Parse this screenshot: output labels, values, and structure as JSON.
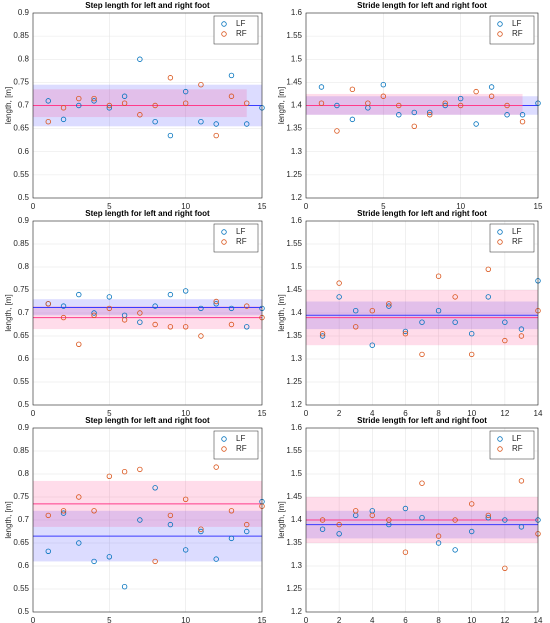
{
  "chart_data": [
    {
      "type": "scatter",
      "title": "Step length for left and right foot",
      "ylabel": "length, [m]",
      "xlim": [
        0,
        15
      ],
      "xticks": [
        0,
        5,
        10,
        15
      ],
      "ylim": [
        0.5,
        0.9
      ],
      "yticks": [
        0.5,
        0.55,
        0.6,
        0.65,
        0.7,
        0.75,
        0.8,
        0.85,
        0.9
      ],
      "grid": true,
      "legend": "upper right",
      "series": [
        {
          "name": "LF",
          "color": "#0072bd",
          "band_color": "#3b3bff",
          "x": [
            1,
            2,
            3,
            4,
            5,
            6,
            7,
            8,
            9,
            10,
            11,
            12,
            13,
            14,
            15
          ],
          "values": [
            0.71,
            0.67,
            0.7,
            0.71,
            0.695,
            0.72,
            0.8,
            0.665,
            0.635,
            0.73,
            0.665,
            0.66,
            0.765,
            0.66,
            0.695
          ],
          "mean": 0.7,
          "band": [
            0.655,
            0.745
          ]
        },
        {
          "name": "RF",
          "color": "#d95319",
          "band_color": "#ff3b8a",
          "x": [
            1,
            2,
            3,
            4,
            5,
            6,
            7,
            8,
            9,
            10,
            11,
            12,
            13,
            14
          ],
          "values": [
            0.665,
            0.695,
            0.715,
            0.715,
            0.7,
            0.705,
            0.68,
            0.7,
            0.76,
            0.705,
            0.745,
            0.635,
            0.72,
            0.705
          ],
          "mean": 0.7,
          "band": [
            0.675,
            0.735
          ]
        }
      ]
    },
    {
      "type": "scatter",
      "title": "Stride length for left and right foot",
      "ylabel": "length, [m]",
      "xlim": [
        0,
        15
      ],
      "xticks": [
        0,
        5,
        10,
        15
      ],
      "ylim": [
        1.2,
        1.6
      ],
      "yticks": [
        1.2,
        1.25,
        1.3,
        1.35,
        1.4,
        1.45,
        1.5,
        1.55,
        1.6
      ],
      "grid": true,
      "legend": "upper right",
      "series": [
        {
          "name": "LF",
          "color": "#0072bd",
          "band_color": "#3b3bff",
          "x": [
            1,
            2,
            3,
            4,
            5,
            6,
            7,
            8,
            9,
            10,
            11,
            12,
            13,
            14,
            15
          ],
          "values": [
            1.44,
            1.4,
            1.37,
            1.395,
            1.445,
            1.38,
            1.385,
            1.385,
            1.4,
            1.415,
            1.36,
            1.44,
            1.38,
            1.38,
            1.405
          ],
          "mean": 1.4,
          "band": [
            1.38,
            1.42
          ]
        },
        {
          "name": "RF",
          "color": "#d95319",
          "band_color": "#ff3b8a",
          "x": [
            1,
            2,
            3,
            4,
            5,
            6,
            7,
            8,
            9,
            10,
            11,
            12,
            13,
            14
          ],
          "values": [
            1.405,
            1.345,
            1.435,
            1.405,
            1.42,
            1.4,
            1.355,
            1.38,
            1.405,
            1.4,
            1.43,
            1.42,
            1.4,
            1.365
          ],
          "mean": 1.4,
          "band": [
            1.38,
            1.425
          ]
        }
      ]
    },
    {
      "type": "scatter",
      "title": "Step length for left and right foot",
      "ylabel": "length, [m]",
      "xlim": [
        0,
        15
      ],
      "xticks": [
        0,
        5,
        10,
        15
      ],
      "ylim": [
        0.5,
        0.9
      ],
      "yticks": [
        0.5,
        0.55,
        0.6,
        0.65,
        0.7,
        0.75,
        0.8,
        0.85,
        0.9
      ],
      "grid": true,
      "legend": "upper right",
      "series": [
        {
          "name": "LF",
          "color": "#0072bd",
          "band_color": "#3b3bff",
          "x": [
            1,
            2,
            3,
            4,
            5,
            6,
            7,
            8,
            9,
            10,
            11,
            12,
            13,
            14,
            15
          ],
          "values": [
            0.72,
            0.715,
            0.74,
            0.7,
            0.735,
            0.695,
            0.68,
            0.715,
            0.74,
            0.748,
            0.71,
            0.72,
            0.71,
            0.67,
            0.71
          ],
          "mean": 0.712,
          "band": [
            0.695,
            0.73
          ]
        },
        {
          "name": "RF",
          "color": "#d95319",
          "band_color": "#ff3b8a",
          "x": [
            1,
            2,
            3,
            4,
            5,
            6,
            7,
            8,
            9,
            10,
            11,
            12,
            13,
            14,
            15
          ],
          "values": [
            0.72,
            0.69,
            0.632,
            0.695,
            0.71,
            0.685,
            0.7,
            0.675,
            0.67,
            0.67,
            0.65,
            0.725,
            0.675,
            0.715,
            0.69
          ],
          "mean": 0.69,
          "band": [
            0.665,
            0.715
          ]
        }
      ]
    },
    {
      "type": "scatter",
      "title": "Stride length for left and right foot",
      "ylabel": "length, [m]",
      "xlim": [
        0,
        14
      ],
      "xticks": [
        0,
        2,
        4,
        6,
        8,
        10,
        12,
        14
      ],
      "ylim": [
        1.2,
        1.6
      ],
      "yticks": [
        1.2,
        1.25,
        1.3,
        1.35,
        1.4,
        1.45,
        1.5,
        1.55,
        1.6
      ],
      "grid": true,
      "legend": "upper right",
      "series": [
        {
          "name": "LF",
          "color": "#0072bd",
          "band_color": "#3b3bff",
          "x": [
            1,
            2,
            3,
            4,
            5,
            6,
            7,
            8,
            9,
            10,
            11,
            12,
            13,
            14
          ],
          "values": [
            1.35,
            1.435,
            1.405,
            1.33,
            1.415,
            1.36,
            1.38,
            1.405,
            1.38,
            1.355,
            1.435,
            1.38,
            1.365,
            1.47
          ],
          "mean": 1.395,
          "band": [
            1.365,
            1.425
          ]
        },
        {
          "name": "RF",
          "color": "#d95319",
          "band_color": "#ff3b8a",
          "x": [
            1,
            2,
            3,
            4,
            5,
            6,
            7,
            8,
            9,
            10,
            11,
            12,
            13,
            14
          ],
          "values": [
            1.355,
            1.465,
            1.37,
            1.405,
            1.42,
            1.355,
            1.31,
            1.48,
            1.435,
            1.31,
            1.495,
            1.34,
            1.35,
            1.405
          ],
          "mean": 1.39,
          "band": [
            1.33,
            1.45
          ]
        }
      ]
    },
    {
      "type": "scatter",
      "title": "Step length for left and right foot",
      "ylabel": "length, [m]",
      "xlim": [
        0,
        15
      ],
      "xticks": [
        0,
        5,
        10,
        15
      ],
      "ylim": [
        0.5,
        0.9
      ],
      "yticks": [
        0.5,
        0.55,
        0.6,
        0.65,
        0.7,
        0.75,
        0.8,
        0.85,
        0.9
      ],
      "grid": true,
      "legend": "upper right",
      "series": [
        {
          "name": "LF",
          "color": "#0072bd",
          "band_color": "#3b3bff",
          "x": [
            1,
            2,
            3,
            4,
            5,
            6,
            7,
            8,
            9,
            10,
            11,
            12,
            13,
            14,
            15
          ],
          "values": [
            0.632,
            0.715,
            0.65,
            0.61,
            0.62,
            0.555,
            0.7,
            0.77,
            0.69,
            0.635,
            0.675,
            0.615,
            0.66,
            0.675,
            0.74
          ],
          "mean": 0.665,
          "band": [
            0.61,
            0.72
          ]
        },
        {
          "name": "RF",
          "color": "#d95319",
          "band_color": "#ff3b8a",
          "x": [
            1,
            2,
            3,
            4,
            5,
            6,
            7,
            8,
            9,
            10,
            11,
            12,
            13,
            14,
            15
          ],
          "values": [
            0.71,
            0.72,
            0.75,
            0.72,
            0.795,
            0.805,
            0.81,
            0.61,
            0.71,
            0.745,
            0.68,
            0.815,
            0.72,
            0.69,
            0.73
          ],
          "mean": 0.735,
          "band": [
            0.685,
            0.785
          ]
        }
      ]
    },
    {
      "type": "scatter",
      "title": "Stride length for left and right foot",
      "ylabel": "length, [m]",
      "xlim": [
        0,
        14
      ],
      "xticks": [
        0,
        2,
        4,
        6,
        8,
        10,
        12,
        14
      ],
      "ylim": [
        1.2,
        1.6
      ],
      "yticks": [
        1.2,
        1.25,
        1.3,
        1.35,
        1.4,
        1.45,
        1.5,
        1.55,
        1.6
      ],
      "grid": true,
      "legend": "upper right",
      "series": [
        {
          "name": "LF",
          "color": "#0072bd",
          "band_color": "#3b3bff",
          "x": [
            1,
            2,
            3,
            4,
            5,
            6,
            7,
            8,
            9,
            10,
            11,
            12,
            13,
            14
          ],
          "values": [
            1.38,
            1.37,
            1.41,
            1.42,
            1.39,
            1.425,
            1.405,
            1.35,
            1.335,
            1.375,
            1.405,
            1.4,
            1.385,
            1.4
          ],
          "mean": 1.39,
          "band": [
            1.36,
            1.42
          ]
        },
        {
          "name": "RF",
          "color": "#d95319",
          "band_color": "#ff3b8a",
          "x": [
            1,
            2,
            3,
            4,
            5,
            6,
            7,
            8,
            9,
            10,
            11,
            12,
            13,
            14
          ],
          "values": [
            1.4,
            1.39,
            1.42,
            1.41,
            1.4,
            1.33,
            1.48,
            1.365,
            1.4,
            1.435,
            1.41,
            1.295,
            1.485,
            1.37
          ],
          "mean": 1.4,
          "band": [
            1.35,
            1.45
          ]
        }
      ]
    }
  ]
}
